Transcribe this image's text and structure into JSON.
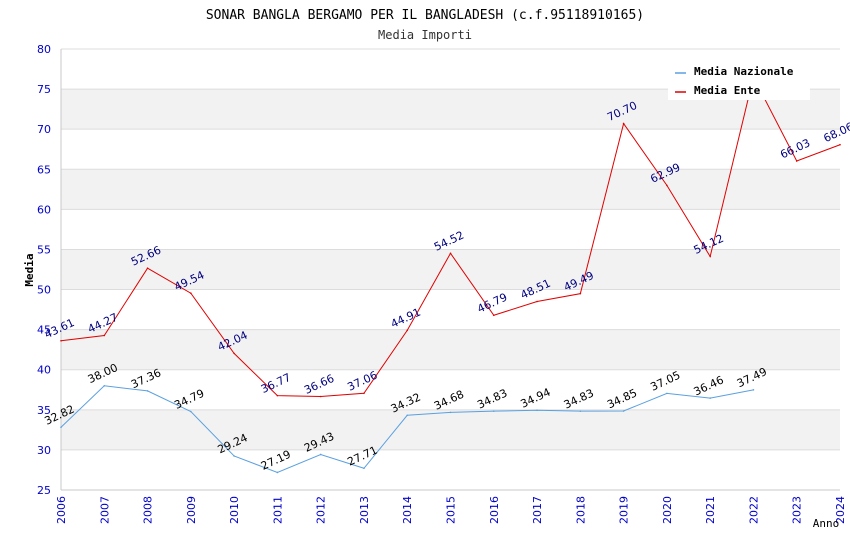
{
  "chart_data": {
    "type": "line",
    "title": "SONAR BANGLA BERGAMO PER IL BANGLADESH (c.f.95118910165)",
    "subtitle": "Media Importi",
    "xlabel": "Anno",
    "ylabel": "Media",
    "ylim": [
      25,
      80
    ],
    "yticks": [
      25,
      30,
      35,
      40,
      45,
      50,
      55,
      60,
      65,
      70,
      75,
      80
    ],
    "x": [
      2006,
      2007,
      2008,
      2009,
      2010,
      2011,
      2012,
      2013,
      2014,
      2015,
      2016,
      2017,
      2018,
      2019,
      2020,
      2021,
      2022,
      2023,
      2024
    ],
    "grid": true,
    "legend_position": "top-right",
    "series": [
      {
        "name": "Media Nazionale",
        "color": "#5aa0e0",
        "label_color": "#000000",
        "values": [
          32.82,
          38.0,
          37.36,
          34.79,
          29.24,
          27.19,
          29.43,
          27.71,
          34.32,
          34.68,
          34.83,
          34.94,
          34.83,
          34.85,
          37.05,
          36.46,
          37.49,
          null,
          null
        ],
        "labels": [
          "32.82",
          "38.00",
          "37.36",
          "34.79",
          "29.24",
          "27.19",
          "29.43",
          "27.71",
          "34.32",
          "34.68",
          "34.83",
          "34.94",
          "34.83",
          "34.85",
          "37.05",
          "36.46",
          "37.49",
          null,
          null
        ]
      },
      {
        "name": "Media Ente",
        "color": "#e00000",
        "label_color": "#000080",
        "values": [
          43.61,
          44.27,
          52.66,
          49.54,
          42.04,
          36.77,
          36.66,
          37.06,
          44.91,
          54.52,
          46.79,
          48.51,
          49.49,
          70.7,
          62.99,
          54.12,
          76.5,
          66.03,
          68.06
        ],
        "labels": [
          "43.61",
          "44.27",
          "52.66",
          "49.54",
          "42.04",
          "36.77",
          "36.66",
          "37.06",
          "44.91",
          "54.52",
          "46.79",
          "48.51",
          "49.49",
          "70.70",
          "62.99",
          "54.12",
          null,
          "66.03",
          "68.06"
        ]
      }
    ]
  }
}
